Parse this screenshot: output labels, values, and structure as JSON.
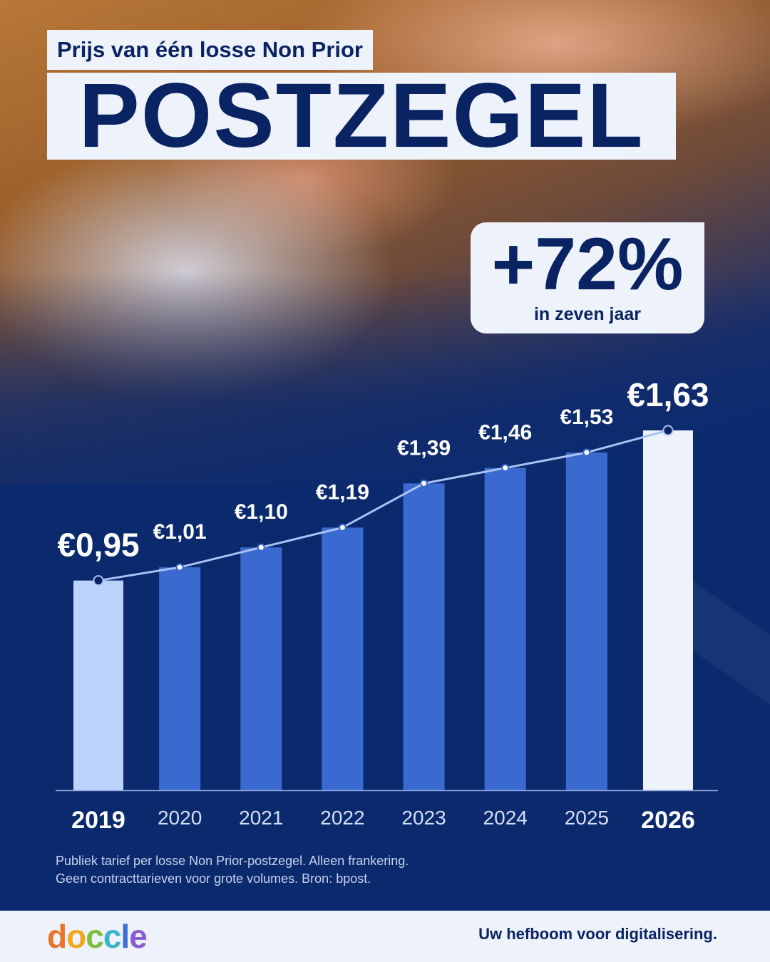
{
  "header": {
    "subtitle": "Prijs van één losse Non Prior",
    "title": "POSTZEGEL"
  },
  "highlight": {
    "value": "+72%",
    "caption": "in zeven jaar"
  },
  "chart_data": {
    "type": "bar",
    "categories": [
      "2019",
      "2020",
      "2021",
      "2022",
      "2023",
      "2024",
      "2025",
      "2026"
    ],
    "values": [
      0.95,
      1.01,
      1.1,
      1.19,
      1.39,
      1.46,
      1.53,
      1.63
    ],
    "data_labels": [
      "€0,95",
      "€1,01",
      "€1,10",
      "€1,19",
      "€1,39",
      "€1,46",
      "€1,53",
      "€1,63"
    ],
    "overlay": "line connecting bar tops",
    "ylim": [
      0,
      1.63
    ],
    "grid": false,
    "legend": "none",
    "colors": {
      "first_bar": "#bcd3fb",
      "middle_bars": "#3a6ad0",
      "last_bar": "#eef2fb",
      "line": "#a9c3f5",
      "axis": "#8ea6de",
      "label": "#ffffff"
    }
  },
  "footnote": {
    "line1": "Publiek tarief per losse Non Prior-postzegel. Alleen frankering.",
    "line2": "Geen contracttarieven voor grote volumes. Bron: bpost."
  },
  "footer": {
    "logo": "doccle",
    "logo_colors": [
      "#e8742a",
      "#f2a81d",
      "#7bbf3a",
      "#3bb3c6",
      "#3d6fd8",
      "#8a5bd1"
    ],
    "tagline": "Uw hefboom voor digitalisering."
  }
}
